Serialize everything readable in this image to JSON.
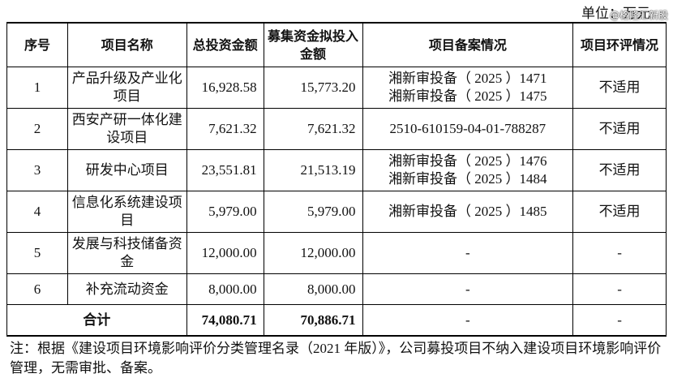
{
  "unit": "单位：万元",
  "watermark": "@格隆汇新股",
  "table": {
    "header": [
      "序号",
      "项目名称",
      "总投资金额",
      "募集资金拟投入金额",
      "项目备案情况",
      "项目环评情况"
    ],
    "rows": [
      [
        "1",
        "产品升级及产业化项目",
        "16,928.58",
        "15,773.20",
        [
          "湘新审投备（ 2025 ）1471",
          "湘新审投备（ 2025 ）1475"
        ],
        "不适用"
      ],
      [
        "2",
        "西安产研一体化建设项目",
        "7,621.32",
        "7,621.32",
        [
          "2510-610159-04-01-788287"
        ],
        "不适用"
      ],
      [
        "3",
        "研发中心项目",
        "23,551.81",
        "21,513.19",
        [
          "湘新审投备（ 2025 ）1476",
          "湘新审投备（ 2025 ）1484"
        ],
        "不适用"
      ],
      [
        "4",
        "信息化系统建设项目",
        "5,979.00",
        "5,979.00",
        [
          "湘新审投备（ 2025 ）1485"
        ],
        "不适用"
      ],
      [
        "5",
        "发展与科技储备资金",
        "12,000.00",
        "12,000.00",
        [
          "-"
        ],
        "-"
      ],
      [
        "6",
        "补充流动资金",
        "8,000.00",
        "8,000.00",
        [
          "-"
        ],
        "-"
      ]
    ],
    "total": [
      "合计",
      "74,080.71",
      "70,886.71",
      "-",
      "-"
    ]
  },
  "note": "注：根据《建设项目环境影响评价分类管理名录（2021 年版）》，公司募投项目不纳入建设项目环境影响评价管理，无需审批、备案。"
}
